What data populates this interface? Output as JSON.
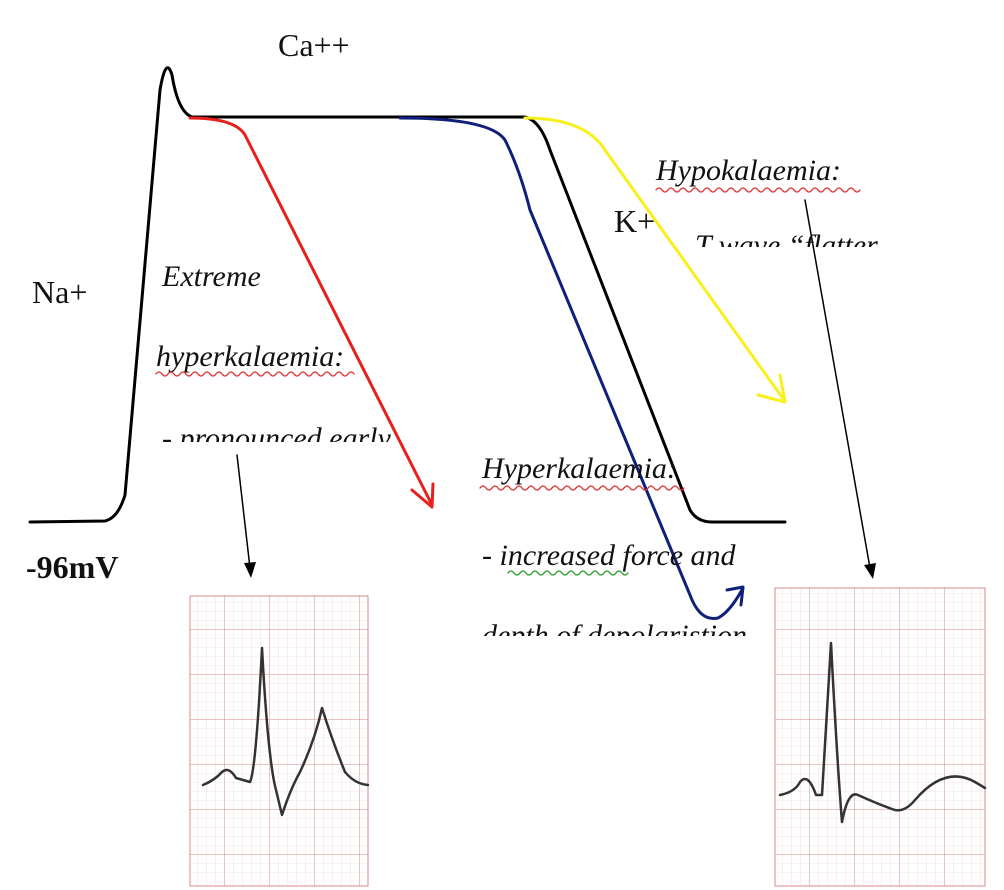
{
  "labels": {
    "calcium": "Ca++",
    "sodium": "Na+",
    "potassium": "K+",
    "resting": "-96mV"
  },
  "extreme_hyperkalaemia": {
    "title1": "Extreme",
    "title2": "hyperkalaemia:",
    "note": "- pronounced early"
  },
  "hyperkalaemia": {
    "title": "Hyperkalaemia:",
    "note1": "- increased force and",
    "note2": "depth of depolaristion"
  },
  "hypokalaemia": {
    "title": "Hypokalaemia:",
    "note": "T wave “flatter"
  }
}
